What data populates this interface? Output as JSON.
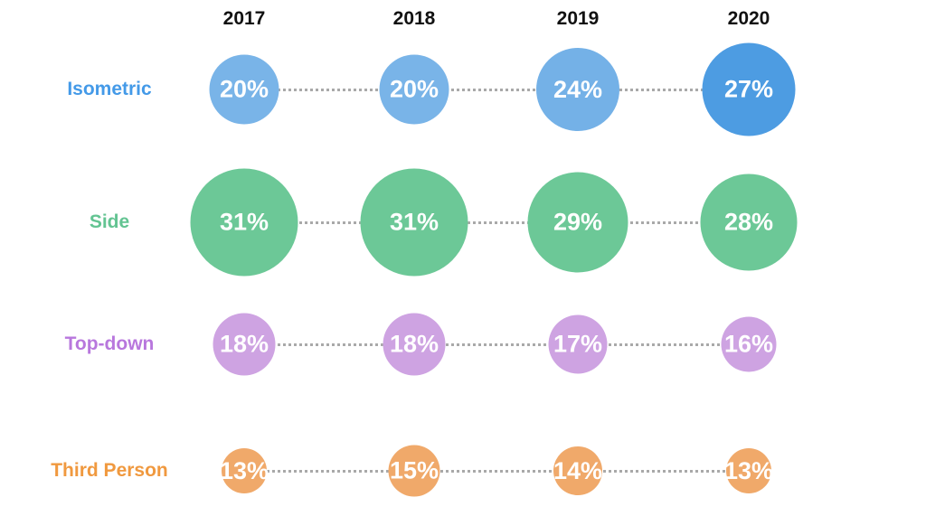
{
  "chart_data": {
    "type": "scatter",
    "variant": "bubble-matrix",
    "title": "",
    "categories": [
      "2017",
      "2018",
      "2019",
      "2020"
    ],
    "series": [
      {
        "name": "Isometric",
        "values": [
          20,
          20,
          24,
          27
        ],
        "display_values": [
          "20%",
          "20%",
          "24%",
          "27%"
        ],
        "label_color": "#449ae8",
        "bubble_colors": [
          "#79b4e8",
          "#79b4e8",
          "#74b1e7",
          "#4d9ce2"
        ]
      },
      {
        "name": "Side",
        "values": [
          31,
          31,
          29,
          28
        ],
        "display_values": [
          "31%",
          "31%",
          "29%",
          "28%"
        ],
        "label_color": "#63c492",
        "bubble_colors": [
          "#6cc897",
          "#6cc897",
          "#6cc897",
          "#6cc897"
        ]
      },
      {
        "name": "Top-down",
        "values": [
          18,
          18,
          17,
          16
        ],
        "display_values": [
          "18%",
          "18%",
          "17%",
          "16%"
        ],
        "label_color": "#b877dd",
        "bubble_colors": [
          "#cea3e2",
          "#cea3e2",
          "#cea3e2",
          "#cea3e2"
        ]
      },
      {
        "name": "Third Person",
        "values": [
          13,
          15,
          14,
          13
        ],
        "display_values": [
          "13%",
          "15%",
          "14%",
          "13%"
        ],
        "label_color": "#f0993f",
        "bubble_colors": [
          "#f0a96a",
          "#f0a96a",
          "#f0a96a",
          "#f0a96a"
        ]
      }
    ],
    "value_suffix": "%",
    "value_text_color": "#ffffff",
    "header_text_color": "#111111",
    "connector_color": "#a9a9a9",
    "background_color": "#ffffff",
    "size_encoding": "bubble diameter proportional to percentage value",
    "grid": false,
    "legend_position": "row labels on left"
  }
}
